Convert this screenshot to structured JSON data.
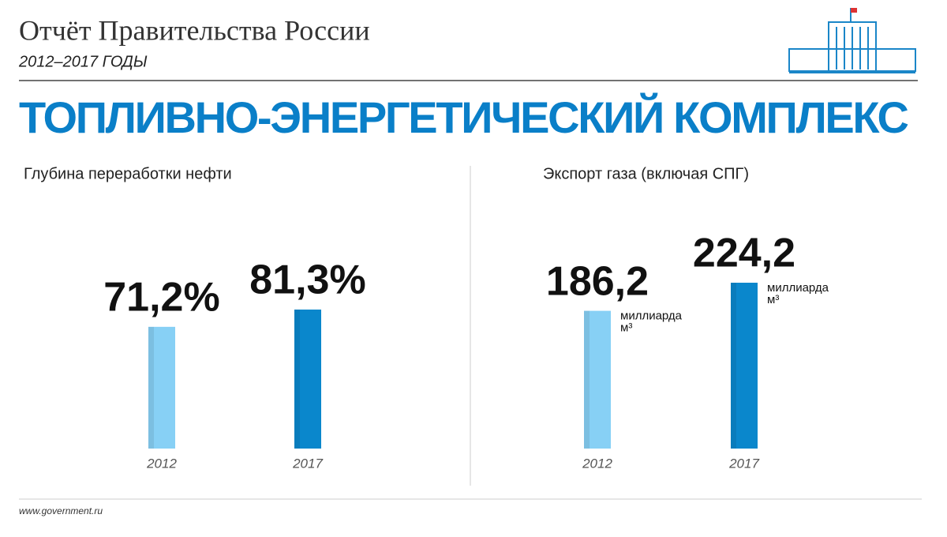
{
  "header": {
    "title": "Отчёт Правительства России",
    "subtitle": "2012–2017 ГОДЫ",
    "headline": "ТОПЛИВНО-ЭНЕРГЕТИЧЕСКИЙ КОМПЛЕКС"
  },
  "chart_data": [
    {
      "type": "bar",
      "title": "Глубина переработки нефти",
      "categories": [
        "2012",
        "2017"
      ],
      "values": [
        71.2,
        81.3
      ],
      "value_labels": [
        "71,2%",
        "81,3%"
      ],
      "colors": [
        "#87d0f5",
        "#0a87cc"
      ]
    },
    {
      "type": "bar",
      "title": "Экспорт газа (включая СПГ)",
      "categories": [
        "2012",
        "2017"
      ],
      "values": [
        186.2,
        224.2
      ],
      "value_labels": [
        "186,2",
        "224,2"
      ],
      "unit_label": [
        "миллиарда",
        "м³"
      ],
      "colors": [
        "#87d0f5",
        "#0a87cc"
      ]
    }
  ],
  "footer": {
    "url": "www.government.ru"
  }
}
